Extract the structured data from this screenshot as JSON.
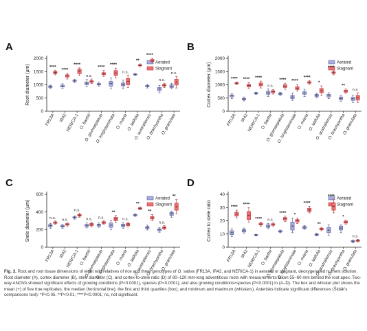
{
  "caption": {
    "label": "Fig. 3.",
    "text": "Root and root tissue dimensions of eight wild relatives of rice and three genotypes of O. sativa (FR13A, IR42, and NERICA-1) in aerated or stagnant, deoxygenated nutrient solution. Root diameter (A), cortex diameter (B), stele diameter (C), and cortex-to-stele ratio (D) of 80–120 mm-long adventitious roots with measurements taken 55–60 mm behind the root apex. Two-way ANOVA showed significant effects of growing conditions (P<0.0001), species (P<0.0001), and also growing conditions×species (P<0.0001) in (A–D). The box and whisker plot shows the mean (+) of five true replicates, the median (horizontal line), the first and third quartiles (box), and minimum and maximum (whiskers). Asterisks indicate significant differences (Šidák's comparisons test): *P<0.05, **P<0.01, ****P<0.0001; ns, not significant."
  },
  "colors": {
    "aerated": "#a9aee0",
    "aerated_edge": "#5a5f9a",
    "stagnant": "#ef6f73",
    "stagnant_edge": "#b83a3e"
  },
  "chart_data": [
    {
      "type": "box",
      "panel": "A",
      "ylabel": "Root diameter (µm)",
      "ylim": [
        0,
        2000
      ],
      "yticks": [
        0,
        500,
        1000,
        1500,
        2000
      ],
      "legend": [
        "Aerated",
        "Stagnant"
      ],
      "legend_position": "top-right",
      "categories": [
        "FR13A",
        "IR42",
        "NERICA-1",
        "O. barthii",
        "O. glumaepatula",
        "O. longistaminata",
        "O. rivaria",
        "O. latifolia",
        "O. australiensis",
        "O. brachyantha",
        "O. granulata"
      ],
      "significance": [
        "****",
        "****",
        "****",
        "n.s.",
        "****",
        "****",
        "n.s.",
        "**",
        "****",
        "n.s.",
        "n.s."
      ],
      "series": [
        {
          "name": "Aerated",
          "boxes": [
            [
              870,
              900,
              930,
              960,
              990
            ],
            [
              870,
              920,
              950,
              990,
              1040
            ],
            [
              1080,
              1130,
              1150,
              1170,
              1210
            ],
            [
              920,
              1000,
              1060,
              1110,
              1200
            ],
            [
              950,
              990,
              1020,
              1050,
              1090
            ],
            [
              850,
              950,
              1050,
              1130,
              1260
            ],
            [
              850,
              960,
              1010,
              1070,
              1180
            ],
            [
              1360,
              1370,
              1390,
              1410,
              1430
            ],
            [
              880,
              930,
              950,
              980,
              1020
            ],
            [
              700,
              780,
              840,
              900,
              980
            ],
            [
              850,
              900,
              950,
              1000,
              1060
            ]
          ]
        },
        {
          "name": "Stagnant",
          "boxes": [
            [
              1380,
              1420,
              1470,
              1510,
              1540
            ],
            [
              1220,
              1290,
              1340,
              1380,
              1440
            ],
            [
              1350,
              1420,
              1520,
              1590,
              1640
            ],
            [
              1050,
              1090,
              1120,
              1160,
              1220
            ],
            [
              1320,
              1380,
              1420,
              1460,
              1540
            ],
            [
              1260,
              1350,
              1450,
              1540,
              1630
            ],
            [
              900,
              1000,
              1120,
              1240,
              1370
            ],
            [
              1680,
              1720,
              1740,
              1760,
              1790
            ],
            [
              1850,
              1880,
              1920,
              1960,
              2000
            ],
            [
              900,
              950,
              980,
              1020,
              1060
            ],
            [
              880,
              990,
              1100,
              1210,
              1320
            ]
          ]
        }
      ]
    },
    {
      "type": "box",
      "panel": "B",
      "ylabel": "Cortex diameter (µm)",
      "ylim": [
        0,
        2000
      ],
      "yticks": [
        0,
        500,
        1000,
        1500,
        2000
      ],
      "legend": [
        "Aerated",
        "Stagnant"
      ],
      "legend_position": "top-right",
      "categories": [
        "FR13A",
        "IR42",
        "NERICA-1",
        "O. barthii",
        "O. glumaepatula",
        "O. longistaminata",
        "O. rivaria",
        "O. latifolia",
        "O. australiensis",
        "O. brachyantha",
        "O. granulata"
      ],
      "significance": [
        "****",
        "****",
        "****",
        "n.s.",
        "****",
        "****",
        "****",
        "*",
        "****",
        "**",
        "n.s."
      ],
      "series": [
        {
          "name": "Aerated",
          "boxes": [
            [
              480,
              540,
              580,
              620,
              670
            ],
            [
              390,
              430,
              460,
              490,
              540
            ],
            [
              640,
              660,
              680,
              700,
              720
            ],
            [
              560,
              640,
              700,
              760,
              850
            ],
            [
              590,
              630,
              660,
              690,
              720
            ],
            [
              410,
              480,
              540,
              600,
              690
            ],
            [
              560,
              640,
              690,
              740,
              830
            ],
            [
              500,
              560,
              600,
              640,
              690
            ],
            [
              480,
              540,
              590,
              640,
              700
            ],
            [
              380,
              440,
              490,
              540,
              610
            ],
            [
              330,
              410,
              470,
              530,
              610
            ]
          ]
        },
        {
          "name": "Stagnant",
          "boxes": [
            [
              1010,
              1040,
              1060,
              1080,
              1110
            ],
            [
              860,
              920,
              970,
              1020,
              1090
            ],
            [
              880,
              960,
              1010,
              1070,
              1140
            ],
            [
              650,
              700,
              740,
              780,
              820
            ],
            [
              830,
              900,
              950,
              1000,
              1060
            ],
            [
              760,
              820,
              870,
              930,
              1020
            ],
            [
              1020,
              1060,
              1090,
              1120,
              1160
            ],
            [
              600,
              700,
              780,
              860,
              960
            ],
            [
              1380,
              1430,
              1460,
              1490,
              1530
            ],
            [
              680,
              720,
              760,
              800,
              840
            ],
            [
              330,
              420,
              510,
              600,
              700
            ]
          ]
        }
      ]
    },
    {
      "type": "box",
      "panel": "C",
      "ylabel": "Stele diameter (µm)",
      "ylim": [
        0,
        600
      ],
      "yticks": [
        0,
        200,
        400,
        600
      ],
      "legend": [
        "Aerated",
        "Stagnant"
      ],
      "legend_position": "top-right",
      "categories": [
        "FR13A",
        "IR42",
        "NERICA-1",
        "O. barthii",
        "O. glumaepatula",
        "O. longistaminata",
        "O. rivaria",
        "O. latifolia",
        "O. australiensis",
        "O. brachyantha",
        "O. granulata"
      ],
      "significance": [
        "n.s.",
        "n.s.",
        "n.s.",
        "n.s.",
        "n.s.",
        "**",
        "n.s.",
        "**",
        "**",
        "n.s.",
        "**"
      ],
      "series": [
        {
          "name": "Aerated",
          "boxes": [
            [
              215,
              230,
              245,
              258,
              270
            ],
            [
              215,
              228,
              238,
              248,
              260
            ],
            [
              318,
              330,
              338,
              345,
              355
            ],
            [
              220,
              235,
              248,
              260,
              275
            ],
            [
              225,
              240,
              252,
              262,
              275
            ],
            [
              200,
              225,
              250,
              275,
              300
            ],
            [
              215,
              232,
              248,
              262,
              280
            ],
            [
              350,
              358,
              365,
              372,
              380
            ],
            [
              195,
              210,
              222,
              235,
              250
            ],
            [
              170,
              185,
              198,
              210,
              225
            ],
            [
              340,
              360,
              378,
              395,
              410
            ]
          ]
        },
        {
          "name": "Stagnant",
          "boxes": [
            [
              260,
              270,
              280,
              288,
              298
            ],
            [
              240,
              250,
              260,
              268,
              275
            ],
            [
              340,
              352,
              362,
              372,
              385
            ],
            [
              230,
              245,
              258,
              270,
              285
            ],
            [
              260,
              270,
              280,
              290,
              300
            ],
            [
              280,
              300,
              320,
              340,
              360
            ],
            [
              230,
              245,
              258,
              270,
              285
            ],
            [
              425,
              432,
              440,
              448,
              455
            ],
            [
              300,
              320,
              335,
              350,
              370
            ],
            [
              200,
              212,
              222,
              232,
              245
            ],
            [
              380,
              420,
              460,
              500,
              540
            ]
          ]
        }
      ]
    },
    {
      "type": "box",
      "panel": "D",
      "ylabel": "Cortex to stele ratio",
      "ylim": [
        0,
        40
      ],
      "yticks": [
        0,
        10,
        20,
        30,
        40
      ],
      "legend": [
        "Aerated",
        "Stagnant"
      ],
      "legend_position": "top-right",
      "categories": [
        "FR13A",
        "IR42",
        "NERICA-1",
        "O. barthii",
        "O. glumaepatula",
        "O. longistaminata",
        "O. rivaria",
        "O. latifolia",
        "O. australiensis",
        "O. brachyantha",
        "O. granulata"
      ],
      "significance": [
        "****",
        "****",
        "****",
        "n.s.",
        "****",
        "*",
        "****",
        "**",
        "****",
        "*",
        "n.s."
      ],
      "series": [
        {
          "name": "Aerated",
          "boxes": [
            [
              8,
              9.5,
              11,
              12.5,
              14
            ],
            [
              10.5,
              11.5,
              12.5,
              13.5,
              14.5
            ],
            [
              8.5,
              8.9,
              9.2,
              9.5,
              9.8
            ],
            [
              14,
              15,
              16,
              17,
              18
            ],
            [
              11,
              11.5,
              12,
              12.5,
              13
            ],
            [
              11,
              13,
              16,
              19,
              22
            ],
            [
              13.5,
              14.2,
              15,
              15.8,
              16.5
            ],
            [
              8.5,
              9,
              9.5,
              10,
              10.5
            ],
            [
              9,
              11,
              13,
              15,
              17
            ],
            [
              11,
              13,
              14.5,
              16,
              17
            ],
            [
              3.5,
              4,
              4.5,
              5,
              5.5
            ]
          ]
        },
        {
          "name": "Stagnant",
          "boxes": [
            [
              22,
              23.5,
              25,
              26.5,
              28
            ],
            [
              19,
              21,
              24,
              27,
              30
            ],
            [
              16,
              16.8,
              17.5,
              18.2,
              19
            ],
            [
              16,
              16.6,
              17.2,
              17.8,
              18.5
            ],
            [
              19.5,
              20.5,
              21.5,
              22.5,
              23.5
            ],
            [
              18,
              19,
              20,
              21,
              22
            ],
            [
              26,
              27,
              28,
              29.5,
              31
            ],
            [
              12.5,
              13.2,
              13.8,
              14.4,
              15
            ],
            [
              26,
              28,
              31,
              33.5,
              36
            ],
            [
              17.5,
              18.2,
              19,
              19.8,
              20.5
            ],
            [
              4,
              4.5,
              5,
              5.5,
              6
            ]
          ]
        }
      ]
    }
  ]
}
